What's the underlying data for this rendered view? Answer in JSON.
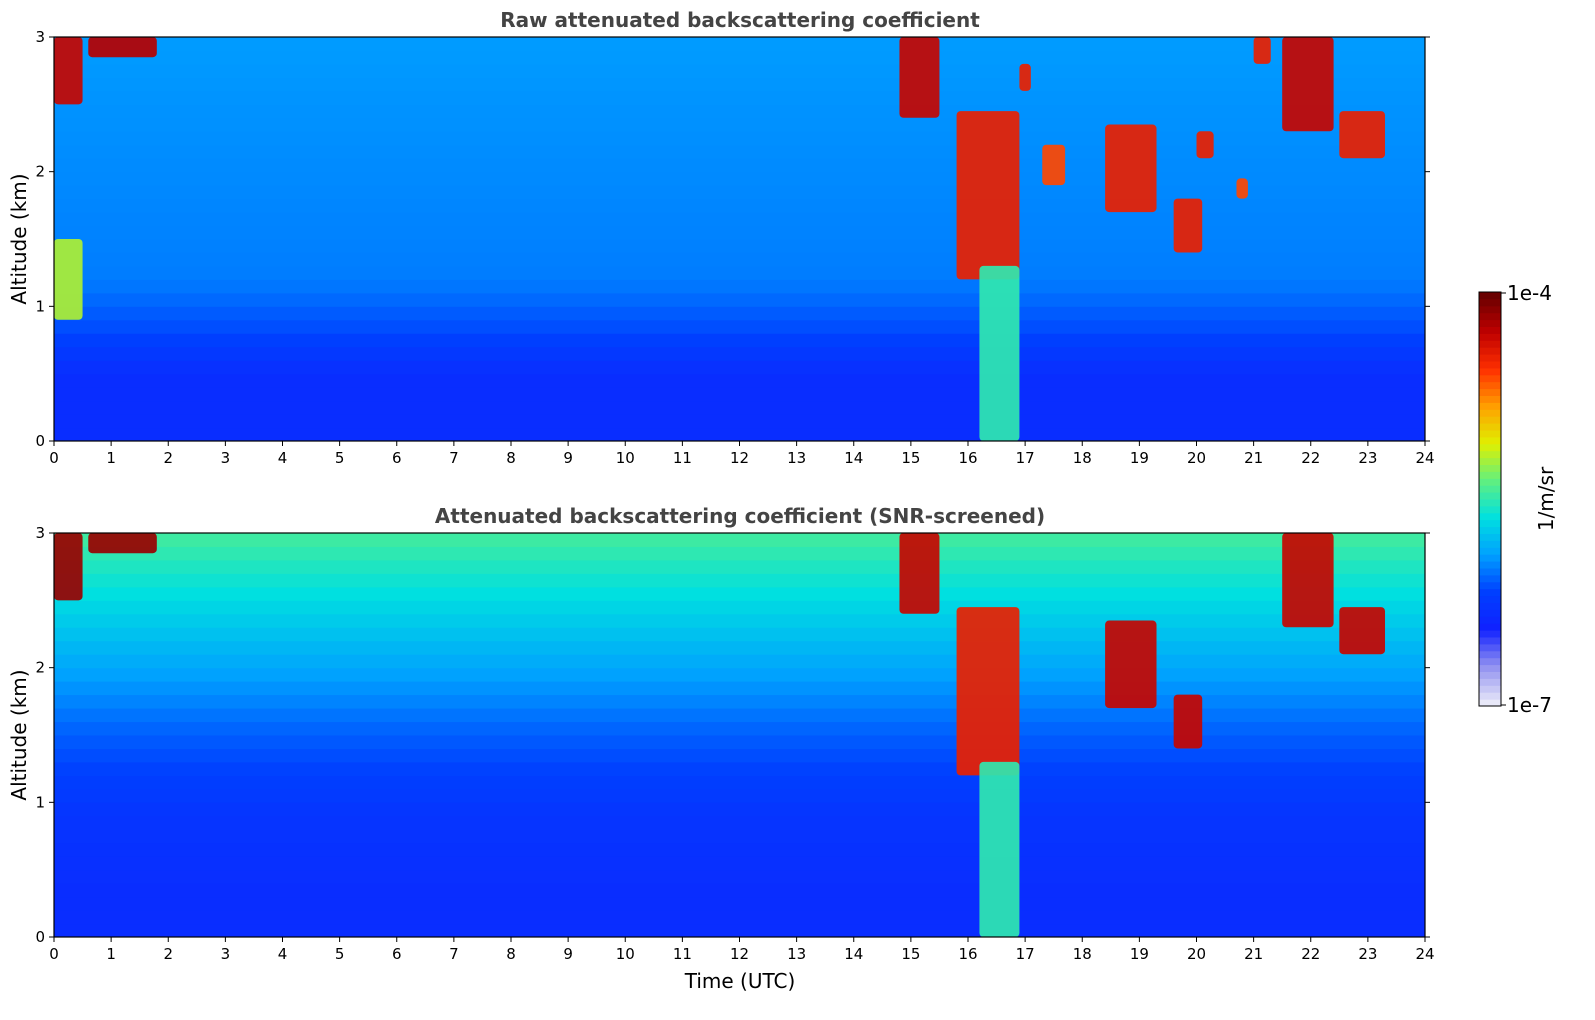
{
  "colors": {
    "background": "#ffffff",
    "title": "#444444",
    "colormap": [
      "#e8e8f8",
      "#9090f0",
      "#1020ff",
      "#0040ff",
      "#00a0ff",
      "#00e0e0",
      "#60f080",
      "#e0f000",
      "#ffa000",
      "#ff3000",
      "#c00000",
      "#6a0000"
    ]
  },
  "chart_data": [
    {
      "type": "heatmap",
      "title": "Raw attenuated backscattering coefficient",
      "xlabel": "",
      "ylabel": "Altitude (km)",
      "xlim": [
        0,
        24
      ],
      "ylim": [
        0,
        3
      ],
      "xticks": [
        "0",
        "1",
        "2",
        "3",
        "4",
        "5",
        "6",
        "7",
        "8",
        "9",
        "10",
        "11",
        "12",
        "13",
        "14",
        "15",
        "16",
        "17",
        "18",
        "19",
        "20",
        "21",
        "22",
        "23",
        "24"
      ],
      "yticks": [
        "0",
        "1",
        "2",
        "3"
      ],
      "background_level_by_altitude": [
        {
          "alt": 0.0,
          "level": 0.22
        },
        {
          "alt": 0.5,
          "level": 0.22
        },
        {
          "alt": 0.8,
          "level": 0.28
        },
        {
          "alt": 1.2,
          "level": 0.33
        },
        {
          "alt": 3.0,
          "level": 0.36
        }
      ],
      "clouds": [
        {
          "t0": 0.0,
          "t1": 0.5,
          "a0": 2.5,
          "a1": 3.0,
          "level": 0.9
        },
        {
          "t0": 0.6,
          "t1": 1.8,
          "a0": 2.85,
          "a1": 3.0,
          "level": 0.92
        },
        {
          "t0": 0.0,
          "t1": 0.5,
          "a0": 0.9,
          "a1": 1.5,
          "level": 0.6
        },
        {
          "t0": 14.8,
          "t1": 15.5,
          "a0": 2.4,
          "a1": 3.0,
          "level": 0.9
        },
        {
          "t0": 15.8,
          "t1": 16.9,
          "a0": 1.2,
          "a1": 2.45,
          "level": 0.85
        },
        {
          "t0": 16.2,
          "t1": 16.9,
          "a0": 0.0,
          "a1": 1.3,
          "level": 0.5
        },
        {
          "t0": 16.9,
          "t1": 17.1,
          "a0": 2.6,
          "a1": 2.8,
          "level": 0.85
        },
        {
          "t0": 17.3,
          "t1": 17.7,
          "a0": 1.9,
          "a1": 2.2,
          "level": 0.8
        },
        {
          "t0": 18.4,
          "t1": 19.3,
          "a0": 1.7,
          "a1": 2.35,
          "level": 0.85
        },
        {
          "t0": 19.6,
          "t1": 20.1,
          "a0": 1.4,
          "a1": 1.8,
          "level": 0.85
        },
        {
          "t0": 20.0,
          "t1": 20.3,
          "a0": 2.1,
          "a1": 2.3,
          "level": 0.85
        },
        {
          "t0": 20.7,
          "t1": 20.9,
          "a0": 1.8,
          "a1": 1.95,
          "level": 0.8
        },
        {
          "t0": 21.0,
          "t1": 21.3,
          "a0": 2.8,
          "a1": 3.0,
          "level": 0.85
        },
        {
          "t0": 21.5,
          "t1": 22.4,
          "a0": 2.3,
          "a1": 3.0,
          "level": 0.9
        },
        {
          "t0": 22.5,
          "t1": 23.3,
          "a0": 2.1,
          "a1": 2.45,
          "level": 0.85
        }
      ]
    },
    {
      "type": "heatmap",
      "title": "Attenuated backscattering coefficient (SNR-screened)",
      "xlabel": "Time (UTC)",
      "ylabel": "Altitude (km)",
      "xlim": [
        0,
        24
      ],
      "ylim": [
        0,
        3
      ],
      "xticks": [
        "0",
        "1",
        "2",
        "3",
        "4",
        "5",
        "6",
        "7",
        "8",
        "9",
        "10",
        "11",
        "12",
        "13",
        "14",
        "15",
        "16",
        "17",
        "18",
        "19",
        "20",
        "21",
        "22",
        "23",
        "24"
      ],
      "yticks": [
        "0",
        "1",
        "2",
        "3"
      ],
      "background_level_by_altitude": [
        {
          "alt": 0.0,
          "level": 0.22
        },
        {
          "alt": 0.35,
          "level": 0.22
        },
        {
          "alt": 0.9,
          "level": 0.24
        },
        {
          "alt": 1.5,
          "level": 0.3
        },
        {
          "alt": 3.0,
          "level": 0.52
        }
      ],
      "clouds": [
        {
          "t0": 0.0,
          "t1": 0.5,
          "a0": 2.5,
          "a1": 3.0,
          "level": 0.95
        },
        {
          "t0": 0.6,
          "t1": 1.8,
          "a0": 2.85,
          "a1": 3.0,
          "level": 0.95
        },
        {
          "t0": 14.8,
          "t1": 15.5,
          "a0": 2.4,
          "a1": 3.0,
          "level": 0.9
        },
        {
          "t0": 15.8,
          "t1": 16.9,
          "a0": 1.2,
          "a1": 2.45,
          "level": 0.85
        },
        {
          "t0": 16.2,
          "t1": 16.9,
          "a0": 0.0,
          "a1": 1.3,
          "level": 0.5
        },
        {
          "t0": 18.4,
          "t1": 19.3,
          "a0": 1.7,
          "a1": 2.35,
          "level": 0.9
        },
        {
          "t0": 19.6,
          "t1": 20.1,
          "a0": 1.4,
          "a1": 1.8,
          "level": 0.9
        },
        {
          "t0": 21.5,
          "t1": 22.4,
          "a0": 2.3,
          "a1": 3.0,
          "level": 0.9
        },
        {
          "t0": 22.5,
          "t1": 23.3,
          "a0": 2.1,
          "a1": 2.45,
          "level": 0.9
        }
      ]
    }
  ],
  "colorbar": {
    "label": "1/m/sr",
    "max_label": "1e-4",
    "min_label": "1e-7"
  }
}
